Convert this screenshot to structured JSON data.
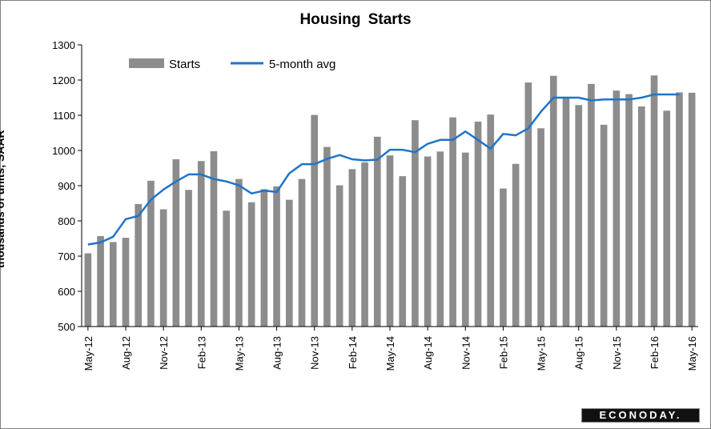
{
  "chart_data": {
    "type": "bar",
    "title": "Housing  Starts",
    "ylabel": "thousands of units, SAAR",
    "xlabel": "",
    "ylim": [
      500,
      1300
    ],
    "yticks": [
      500,
      600,
      700,
      800,
      900,
      1000,
      1100,
      1200,
      1300
    ],
    "categories": [
      "May-12",
      "Jun-12",
      "Jul-12",
      "Aug-12",
      "Sep-12",
      "Oct-12",
      "Nov-12",
      "Dec-12",
      "Jan-13",
      "Feb-13",
      "Mar-13",
      "Apr-13",
      "May-13",
      "Jun-13",
      "Jul-13",
      "Aug-13",
      "Sep-13",
      "Oct-13",
      "Nov-13",
      "Dec-13",
      "Jan-14",
      "Feb-14",
      "Mar-14",
      "Apr-14",
      "May-14",
      "Jun-14",
      "Jul-14",
      "Aug-14",
      "Sep-14",
      "Oct-14",
      "Nov-14",
      "Dec-14",
      "Jan-15",
      "Feb-15",
      "Mar-15",
      "Apr-15",
      "May-15",
      "Jun-15",
      "Jul-15",
      "Aug-15",
      "Sep-15",
      "Oct-15",
      "Nov-15",
      "Dec-15",
      "Jan-16",
      "Feb-16",
      "Mar-16",
      "Apr-16",
      "May-16"
    ],
    "tick_labels": [
      "May-12",
      "Aug-12",
      "Nov-12",
      "Feb-13",
      "May-13",
      "Aug-13",
      "Nov-13",
      "Feb-14",
      "May-14",
      "Aug-14",
      "Nov-14",
      "Feb-15",
      "May-15",
      "Aug-15",
      "Nov-15",
      "Feb-16",
      "May-16"
    ],
    "legend_position": "top-left",
    "grid": false,
    "series": [
      {
        "name": "Starts",
        "kind": "bar",
        "color": "#8c8c8c",
        "values": [
          708,
          757,
          740,
          752,
          848,
          914,
          833,
          975,
          888,
          970,
          998,
          829,
          919,
          853,
          890,
          898,
          860,
          919,
          1101,
          1010,
          901,
          947,
          966,
          1039,
          986,
          927,
          1086,
          983,
          997,
          1094,
          994,
          1082,
          1102,
          892,
          962,
          1193,
          1063,
          1212,
          1152,
          1129,
          1189,
          1073,
          1170,
          1160,
          1125,
          1213,
          1113,
          1165,
          1164
        ]
      },
      {
        "name": "5-month avg",
        "kind": "line",
        "color": "#1f74c9",
        "values": [
          733,
          739,
          755,
          805,
          814,
          860,
          889,
          912,
          932,
          932,
          919,
          912,
          901,
          878,
          886,
          882,
          935,
          961,
          961,
          976,
          987,
          975,
          972,
          974,
          1002,
          1002,
          995,
          1019,
          1030,
          1030,
          1054,
          1030,
          1005,
          1047,
          1043,
          1063,
          1110,
          1150,
          1150,
          1150,
          1142,
          1145,
          1145,
          1145,
          1150,
          1159,
          1159,
          1159,
          null
        ]
      }
    ]
  },
  "logo_text": "ECONODAY."
}
